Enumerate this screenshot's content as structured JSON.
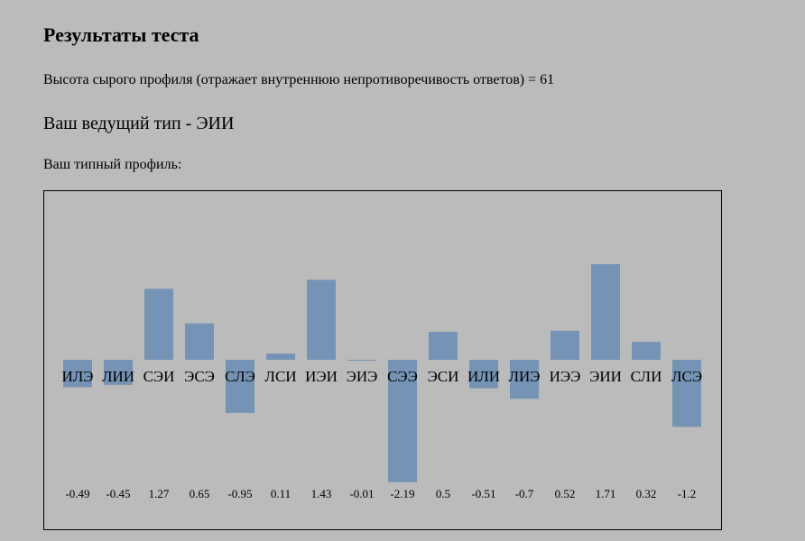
{
  "page": {
    "heading": "Результаты теста",
    "raw_profile": "Высота сырого профиля (отражает внутреннюю непротиворечивость ответов) = 61",
    "leading_type": "Ваш ведущий тип - ЭИИ",
    "profile_label": "Ваш типный профиль:"
  },
  "chart_data": {
    "type": "bar",
    "categories": [
      "ИЛЭ",
      "ЛИИ",
      "СЭИ",
      "ЭСЭ",
      "СЛЭ",
      "ЛСИ",
      "ИЭИ",
      "ЭИЭ",
      "СЭЭ",
      "ЭСИ",
      "ИЛИ",
      "ЛИЭ",
      "ИЭЭ",
      "ЭИИ",
      "СЛИ",
      "ЛСЭ"
    ],
    "values": [
      -0.49,
      -0.45,
      1.27,
      0.65,
      -0.95,
      0.11,
      1.43,
      -0.01,
      -2.19,
      0.5,
      -0.51,
      -0.7,
      0.52,
      1.71,
      0.32,
      -1.2
    ],
    "color": "#7594b5"
  }
}
